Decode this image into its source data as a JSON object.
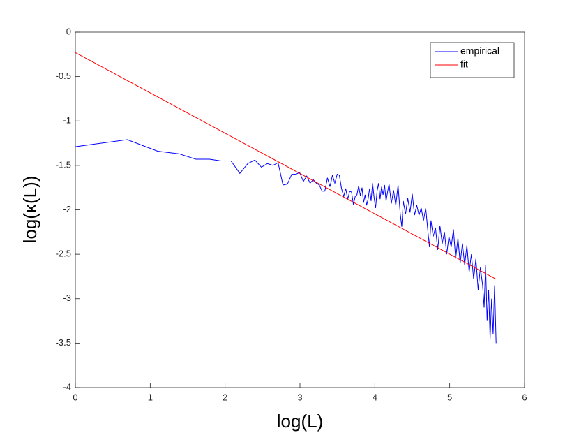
{
  "chart_data": {
    "type": "line",
    "x_label": "log(L)",
    "y_label": "log(κ(L))",
    "xlim": [
      0,
      6
    ],
    "xticks": [
      0,
      1,
      2,
      3,
      4,
      5,
      6
    ],
    "ylim": [
      -4,
      0
    ],
    "yticks": [
      -4,
      -3.5,
      -3,
      -2.5,
      -2,
      -1.5,
      -1,
      -0.5,
      0
    ],
    "legend": "top-right",
    "grid": false,
    "series": [
      {
        "name": "empirical",
        "color": "#0000ff",
        "x": [
          0,
          0.693,
          1.099,
          1.386,
          1.609,
          1.792,
          1.946,
          2.079,
          2.197,
          2.303,
          2.398,
          2.485,
          2.565,
          2.639,
          2.708,
          2.773,
          2.833,
          2.89,
          2.944,
          2.996,
          3.045,
          3.091,
          3.135,
          3.178,
          3.219,
          3.258,
          3.296,
          3.332,
          3.367,
          3.401,
          3.434,
          3.466,
          3.497,
          3.526,
          3.555,
          3.584,
          3.611,
          3.638,
          3.664,
          3.689,
          3.714,
          3.738,
          3.761,
          3.784,
          3.807,
          3.829,
          3.85,
          3.87,
          3.89,
          3.91,
          3.93,
          3.95,
          3.97,
          3.99,
          4.01,
          4.03,
          4.05,
          4.07,
          4.09,
          4.11,
          4.13,
          4.15,
          4.17,
          4.19,
          4.22,
          4.25,
          4.28,
          4.31,
          4.34,
          4.36,
          4.38,
          4.41,
          4.44,
          4.47,
          4.5,
          4.53,
          4.56,
          4.59,
          4.62,
          4.65,
          4.68,
          4.71,
          4.73,
          4.75,
          4.78,
          4.81,
          4.84,
          4.87,
          4.9,
          4.93,
          4.96,
          4.99,
          5.02,
          5.05,
          5.08,
          5.11,
          5.14,
          5.17,
          5.2,
          5.23,
          5.26,
          5.29,
          5.32,
          5.35,
          5.38,
          5.41,
          5.44,
          5.46,
          5.48,
          5.5,
          5.52,
          5.54,
          5.56,
          5.58,
          5.6,
          5.62
        ],
        "values": [
          -1.29,
          -1.21,
          -1.34,
          -1.37,
          -1.43,
          -1.43,
          -1.45,
          -1.45,
          -1.59,
          -1.48,
          -1.44,
          -1.52,
          -1.48,
          -1.5,
          -1.47,
          -1.72,
          -1.71,
          -1.6,
          -1.6,
          -1.58,
          -1.68,
          -1.62,
          -1.7,
          -1.66,
          -1.7,
          -1.72,
          -1.79,
          -1.79,
          -1.64,
          -1.74,
          -1.61,
          -1.7,
          -1.6,
          -1.61,
          -1.76,
          -1.85,
          -1.76,
          -1.88,
          -1.79,
          -1.8,
          -1.94,
          -1.85,
          -1.83,
          -1.73,
          -1.84,
          -1.75,
          -1.92,
          -1.83,
          -1.95,
          -1.88,
          -1.76,
          -1.9,
          -1.7,
          -1.86,
          -1.98,
          -1.79,
          -1.7,
          -1.88,
          -1.74,
          -1.83,
          -1.72,
          -1.9,
          -1.8,
          -1.71,
          -1.93,
          -1.78,
          -1.95,
          -1.72,
          -2.05,
          -2.19,
          -1.9,
          -2.05,
          -1.87,
          -2.03,
          -1.82,
          -2.06,
          -1.95,
          -2.06,
          -1.98,
          -2.12,
          -1.98,
          -2.25,
          -2.42,
          -2.12,
          -2.3,
          -2.2,
          -2.45,
          -2.18,
          -2.38,
          -2.25,
          -2.5,
          -2.3,
          -2.42,
          -2.22,
          -2.55,
          -2.32,
          -2.6,
          -2.38,
          -2.62,
          -2.4,
          -2.7,
          -2.5,
          -2.78,
          -2.55,
          -2.9,
          -2.65,
          -2.85,
          -3.1,
          -2.62,
          -3.25,
          -2.9,
          -3.45,
          -3.0,
          -3.4,
          -2.85,
          -3.5
        ]
      },
      {
        "name": "fit",
        "color": "#ff0000",
        "x": [
          0,
          5.62
        ],
        "values": [
          -0.23,
          -2.78
        ]
      }
    ]
  }
}
